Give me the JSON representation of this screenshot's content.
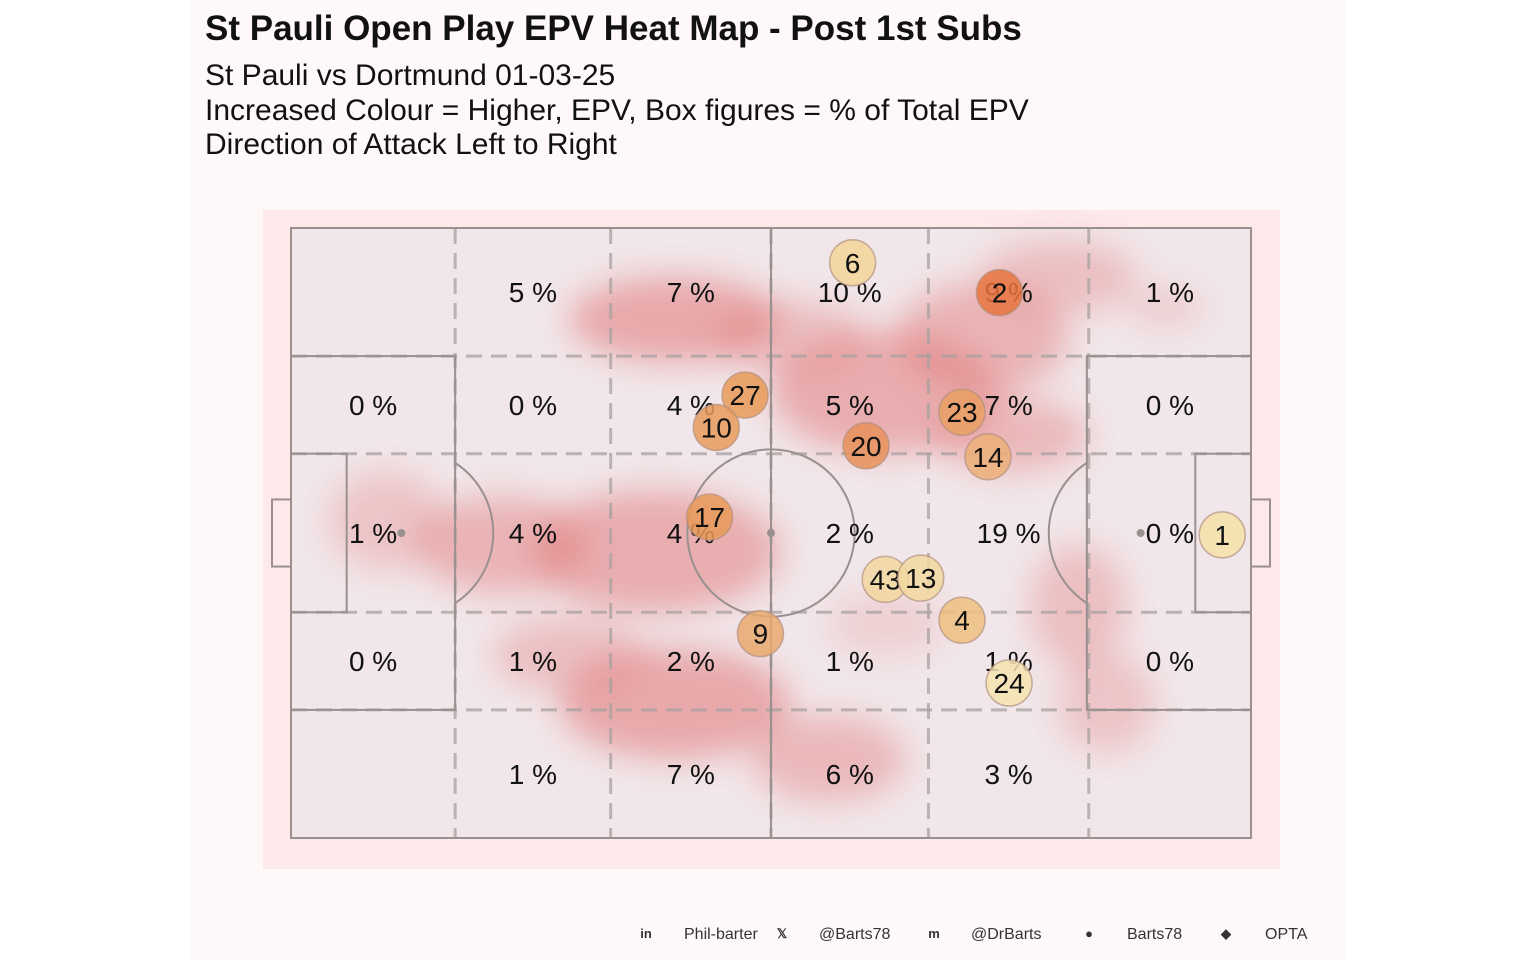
{
  "chart_data": {
    "type": "heatmap",
    "title": "St Pauli Open Play EPV Heat Map - Post 1st Subs",
    "subtitle_lines": [
      "St Pauli vs Dortmund 01-03-25",
      "Increased Colour = Higher, EPV, Box figures = % of Total EPV",
      "Direction of Attack Left to Right"
    ],
    "zones": [
      {
        "row": 0,
        "col": 1,
        "label": "5 %"
      },
      {
        "row": 0,
        "col": 2,
        "label": "7 %"
      },
      {
        "row": 0,
        "col": 3,
        "label": "10 %"
      },
      {
        "row": 0,
        "col": 4,
        "label": "9 %"
      },
      {
        "row": 0,
        "col": 5,
        "label": "1 %"
      },
      {
        "row": 1,
        "col": 0,
        "label": "0 %"
      },
      {
        "row": 1,
        "col": 1,
        "label": "0 %"
      },
      {
        "row": 1,
        "col": 2,
        "label": "4 %"
      },
      {
        "row": 1,
        "col": 3,
        "label": "5 %"
      },
      {
        "row": 1,
        "col": 4,
        "label": "7 %"
      },
      {
        "row": 1,
        "col": 5,
        "label": "0 %"
      },
      {
        "row": 2,
        "col": 0,
        "label": "1 %"
      },
      {
        "row": 2,
        "col": 1,
        "label": "4 %"
      },
      {
        "row": 2,
        "col": 2,
        "label": "4 %"
      },
      {
        "row": 2,
        "col": 3,
        "label": "2 %"
      },
      {
        "row": 2,
        "col": 4,
        "label": "19 %"
      },
      {
        "row": 2,
        "col": 5,
        "label": "0 %"
      },
      {
        "row": 3,
        "col": 0,
        "label": "0 %"
      },
      {
        "row": 3,
        "col": 1,
        "label": "1 %"
      },
      {
        "row": 3,
        "col": 2,
        "label": "2 %"
      },
      {
        "row": 3,
        "col": 3,
        "label": "1 %"
      },
      {
        "row": 3,
        "col": 4,
        "label": "1 %"
      },
      {
        "row": 3,
        "col": 5,
        "label": "0 %"
      },
      {
        "row": 4,
        "col": 1,
        "label": "1 %"
      },
      {
        "row": 4,
        "col": 2,
        "label": "7 %"
      },
      {
        "row": 4,
        "col": 3,
        "label": "6 %"
      },
      {
        "row": 4,
        "col": 4,
        "label": "3 %"
      }
    ],
    "players": [
      {
        "number": "6",
        "x": 58.5,
        "y": 94.3,
        "color": "#f3d59a"
      },
      {
        "number": "2",
        "x": 73.8,
        "y": 89.4,
        "color": "#e8743f"
      },
      {
        "number": "27",
        "x": 47.3,
        "y": 72.6,
        "color": "#e89a57"
      },
      {
        "number": "10",
        "x": 44.3,
        "y": 67.3,
        "color": "#e89a5c"
      },
      {
        "number": "23",
        "x": 69.9,
        "y": 69.8,
        "color": "#e9a064"
      },
      {
        "number": "20",
        "x": 59.9,
        "y": 64.3,
        "color": "#e8905a"
      },
      {
        "number": "14",
        "x": 72.6,
        "y": 62.5,
        "color": "#ecaf78"
      },
      {
        "number": "17",
        "x": 43.6,
        "y": 52.6,
        "color": "#e89a58"
      },
      {
        "number": "1",
        "x": 97.0,
        "y": 49.7,
        "color": "#f4e0a8"
      },
      {
        "number": "43",
        "x": 61.9,
        "y": 42.4,
        "color": "#f2d7a0"
      },
      {
        "number": "13",
        "x": 65.6,
        "y": 42.6,
        "color": "#f2d8a0"
      },
      {
        "number": "9",
        "x": 48.9,
        "y": 33.5,
        "color": "#e9a96e"
      },
      {
        "number": "4",
        "x": 69.9,
        "y": 35.7,
        "color": "#eec07f"
      },
      {
        "number": "24",
        "x": 74.8,
        "y": 25.4,
        "color": "#f4e3ae"
      }
    ],
    "colors": {
      "panel": "#fff8f8",
      "pitch_fill": "#f1e6e9",
      "pitch_lines": "#9a9090",
      "heat": "#e06a6a"
    }
  },
  "footer": [
    {
      "icon": "linkedin-icon",
      "text": "Phil-barter"
    },
    {
      "icon": "x-icon",
      "text": "@Barts78"
    },
    {
      "icon": "mastodon-icon",
      "text": "@DrBarts"
    },
    {
      "icon": "github-icon",
      "text": "Barts78"
    },
    {
      "icon": "dropbox-icon",
      "text": "OPTA"
    }
  ]
}
